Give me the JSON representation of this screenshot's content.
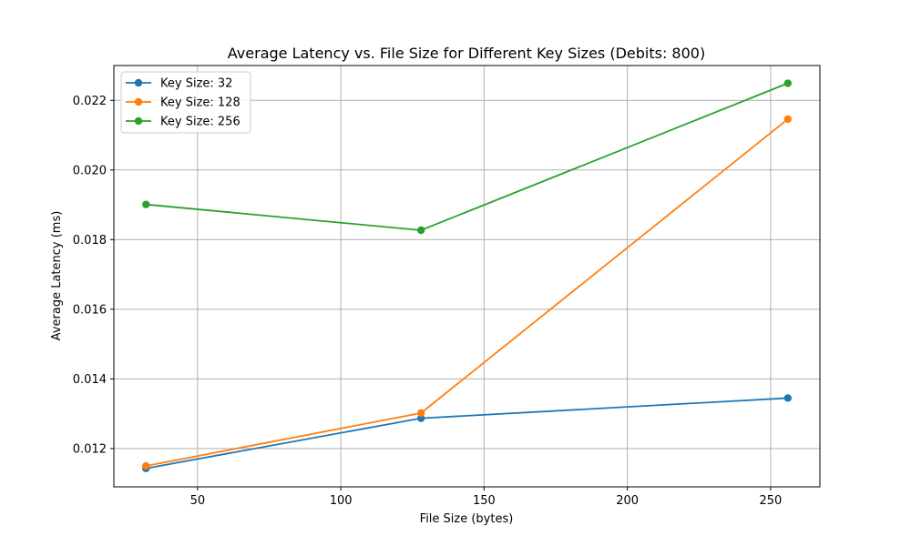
{
  "chart_data": {
    "type": "line",
    "title": "Average Latency vs. File Size for Different Key Sizes (Debits: 800)",
    "xlabel": "File Size (bytes)",
    "ylabel": "Average Latency (ms)",
    "x": [
      32,
      128,
      256
    ],
    "xlim": [
      20.8,
      267.2
    ],
    "ylim": [
      0.0109,
      0.023
    ],
    "xticks": [
      50,
      100,
      150,
      200,
      250
    ],
    "yticks": [
      0.012,
      0.014,
      0.016,
      0.018,
      0.02,
      0.022
    ],
    "ytick_labels": [
      "0.012",
      "0.014",
      "0.016",
      "0.018",
      "0.020",
      "0.022"
    ],
    "grid": true,
    "legend_position": "top-left",
    "series": [
      {
        "name": "Key Size: 32",
        "color": "#1f77b4",
        "values": [
          0.01143,
          0.01287,
          0.01345
        ]
      },
      {
        "name": "Key Size: 128",
        "color": "#ff7f0e",
        "values": [
          0.0115,
          0.01302,
          0.02146
        ]
      },
      {
        "name": "Key Size: 256",
        "color": "#2ca02c",
        "values": [
          0.01901,
          0.01827,
          0.02249
        ]
      }
    ]
  }
}
